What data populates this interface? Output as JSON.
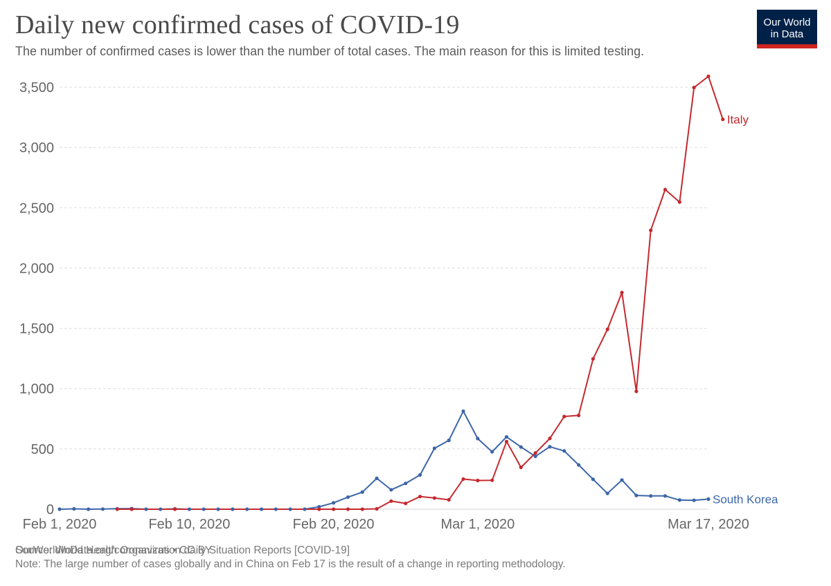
{
  "header": {
    "title": "Daily new confirmed cases of COVID-19",
    "subtitle": "The number of confirmed cases is lower than the number of total cases. The main reason for this is limited testing."
  },
  "logo": {
    "line1": "Our World",
    "line2": "in Data",
    "bg_color": "#002147",
    "accent_color": "#ce261e"
  },
  "footer": {
    "source": "Source: World Health Organization daily Situation Reports [COVID-19]",
    "note": "Note: The large number of cases globally and in China on Feb 17 is the result of a change in reporting methodology.",
    "credit": "OurWorldInData.org/coronavirus • CC BY"
  },
  "chart_data": {
    "type": "line",
    "x_start": "2020-02-01",
    "x_end": "2020-03-17",
    "x_ticks": [
      {
        "date": "2020-02-01",
        "label": "Feb 1, 2020"
      },
      {
        "date": "2020-02-10",
        "label": "Feb 10, 2020"
      },
      {
        "date": "2020-02-20",
        "label": "Feb 20, 2020"
      },
      {
        "date": "2020-03-01",
        "label": "Mar 1, 2020"
      },
      {
        "date": "2020-03-17",
        "label": "Mar 17, 2020"
      }
    ],
    "y_ticks": [
      0,
      500,
      1000,
      1500,
      2000,
      2500,
      3000,
      3500
    ],
    "y_tick_labels": [
      "0",
      "500",
      "1,000",
      "1,500",
      "2,000",
      "2,500",
      "3,000",
      "3,500"
    ],
    "ylim": [
      0,
      3500
    ],
    "grid": "horizontal-dashed",
    "legend": "inline-end-labels",
    "series": [
      {
        "name": "South Korea",
        "color": "#3c66a8",
        "points": [
          [
            "2020-02-01",
            0
          ],
          [
            "2020-02-02",
            3
          ],
          [
            "2020-02-03",
            0
          ],
          [
            "2020-02-04",
            1
          ],
          [
            "2020-02-05",
            4
          ],
          [
            "2020-02-06",
            5
          ],
          [
            "2020-02-07",
            0
          ],
          [
            "2020-02-08",
            0
          ],
          [
            "2020-02-09",
            3
          ],
          [
            "2020-02-10",
            0
          ],
          [
            "2020-02-11",
            0
          ],
          [
            "2020-02-12",
            0
          ],
          [
            "2020-02-13",
            0
          ],
          [
            "2020-02-14",
            0
          ],
          [
            "2020-02-15",
            0
          ],
          [
            "2020-02-16",
            0
          ],
          [
            "2020-02-17",
            0
          ],
          [
            "2020-02-18",
            0
          ],
          [
            "2020-02-19",
            20
          ],
          [
            "2020-02-20",
            53
          ],
          [
            "2020-02-21",
            100
          ],
          [
            "2020-02-22",
            142
          ],
          [
            "2020-02-23",
            256
          ],
          [
            "2020-02-24",
            161
          ],
          [
            "2020-02-25",
            214
          ],
          [
            "2020-02-26",
            284
          ],
          [
            "2020-02-27",
            505
          ],
          [
            "2020-02-28",
            571
          ],
          [
            "2020-02-29",
            813
          ],
          [
            "2020-03-01",
            586
          ],
          [
            "2020-03-02",
            476
          ],
          [
            "2020-03-03",
            600
          ],
          [
            "2020-03-04",
            516
          ],
          [
            "2020-03-05",
            438
          ],
          [
            "2020-03-06",
            518
          ],
          [
            "2020-03-07",
            483
          ],
          [
            "2020-03-08",
            367
          ],
          [
            "2020-03-09",
            248
          ],
          [
            "2020-03-10",
            131
          ],
          [
            "2020-03-11",
            242
          ],
          [
            "2020-03-12",
            114
          ],
          [
            "2020-03-13",
            110
          ],
          [
            "2020-03-14",
            110
          ],
          [
            "2020-03-15",
            76
          ],
          [
            "2020-03-16",
            74
          ],
          [
            "2020-03-17",
            84
          ]
        ]
      },
      {
        "name": "Italy",
        "color": "#c4292e",
        "points": [
          [
            "2020-02-05",
            0
          ],
          [
            "2020-02-06",
            0
          ],
          [
            "2020-02-09",
            0
          ],
          [
            "2020-02-19",
            0
          ],
          [
            "2020-02-20",
            0
          ],
          [
            "2020-02-21",
            0
          ],
          [
            "2020-02-22",
            0
          ],
          [
            "2020-02-23",
            3
          ],
          [
            "2020-02-24",
            67
          ],
          [
            "2020-02-25",
            48
          ],
          [
            "2020-02-26",
            105
          ],
          [
            "2020-02-27",
            93
          ],
          [
            "2020-02-28",
            78
          ],
          [
            "2020-02-29",
            250
          ],
          [
            "2020-03-01",
            238
          ],
          [
            "2020-03-02",
            240
          ],
          [
            "2020-03-03",
            561
          ],
          [
            "2020-03-04",
            347
          ],
          [
            "2020-03-05",
            466
          ],
          [
            "2020-03-06",
            587
          ],
          [
            "2020-03-07",
            769
          ],
          [
            "2020-03-08",
            778
          ],
          [
            "2020-03-09",
            1247
          ],
          [
            "2020-03-10",
            1492
          ],
          [
            "2020-03-11",
            1797
          ],
          [
            "2020-03-12",
            977
          ],
          [
            "2020-03-13",
            2313
          ],
          [
            "2020-03-14",
            2651
          ],
          [
            "2020-03-15",
            2547
          ],
          [
            "2020-03-16",
            3497
          ],
          [
            "2020-03-17",
            3590
          ],
          [
            "2020-03-18",
            3233
          ]
        ]
      }
    ]
  }
}
